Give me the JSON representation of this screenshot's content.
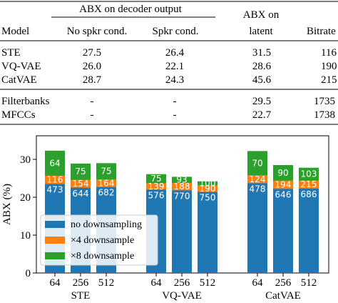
{
  "table": {
    "group_header": "ABX on decoder output",
    "header_abx_latent_line1": "ABX on",
    "header_abx_latent_line2": "latent",
    "columns": [
      "Model",
      "No spkr cond.",
      "Spkr cond.",
      "latent",
      "Bitrate"
    ],
    "rows": [
      {
        "model": "STE",
        "no_spkr": "27.5",
        "spkr": "26.4",
        "latent": "31.5",
        "bitrate": "116"
      },
      {
        "model": "VQ-VAE",
        "no_spkr": "26.0",
        "spkr": "22.1",
        "latent": "28.6",
        "bitrate": "190"
      },
      {
        "model": "CatVAE",
        "no_spkr": "28.7",
        "spkr": "24.3",
        "latent": "45.6",
        "bitrate": "215"
      },
      {
        "model": "Filterbanks",
        "no_spkr": "-",
        "spkr": "-",
        "latent": "29.5",
        "bitrate": "1735"
      },
      {
        "model": "MFCCs",
        "no_spkr": "-",
        "spkr": "-",
        "latent": "22.7",
        "bitrate": "1738"
      }
    ]
  },
  "chart_data": {
    "type": "bar",
    "ylabel": "ABX (%)",
    "ylim": [
      0,
      34
    ],
    "yticks": [
      "0",
      "10",
      "20",
      "30"
    ],
    "groups": [
      "STE",
      "VQ-VAE",
      "CatVAE"
    ],
    "categories": [
      "64",
      "256",
      "512"
    ],
    "legend_position": "lower-left",
    "colors": {
      "no_downsampling": "#1f77b4",
      "x4_downsample": "#ff7f0e",
      "x8_downsample": "#2ca02c"
    },
    "series": [
      {
        "name": "no downsampling",
        "color": "#1f77b4",
        "values": [
          [
            23.5,
            22.5,
            22.7
          ],
          [
            22.0,
            21.8,
            21.4
          ],
          [
            23.7,
            22.2,
            22.3
          ]
        ],
        "labels": [
          [
            "473",
            "644",
            "682"
          ],
          [
            "576",
            "770",
            "750"
          ],
          [
            "478",
            "646",
            "686"
          ]
        ]
      },
      {
        "name": "×4 downsample",
        "color": "#ff7f0e",
        "values": [
          [
            25.7,
            24.6,
            24.7
          ],
          [
            23.7,
            23.8,
            23.2
          ],
          [
            25.8,
            24.4,
            24.4
          ]
        ],
        "labels": [
          [
            "116",
            "154",
            "164"
          ],
          [
            "139",
            "188",
            "190"
          ],
          [
            "124",
            "194",
            "215"
          ]
        ]
      },
      {
        "name": "×8 downsample",
        "color": "#2ca02c",
        "values": [
          [
            32.3,
            28.9,
            29.0
          ],
          [
            26.1,
            25.4,
            24.2
          ],
          [
            32.2,
            28.5,
            27.8
          ]
        ],
        "labels": [
          [
            "64",
            "75",
            "75"
          ],
          [
            "75",
            "93",
            "100"
          ],
          [
            "70",
            "90",
            "103"
          ]
        ]
      }
    ]
  }
}
